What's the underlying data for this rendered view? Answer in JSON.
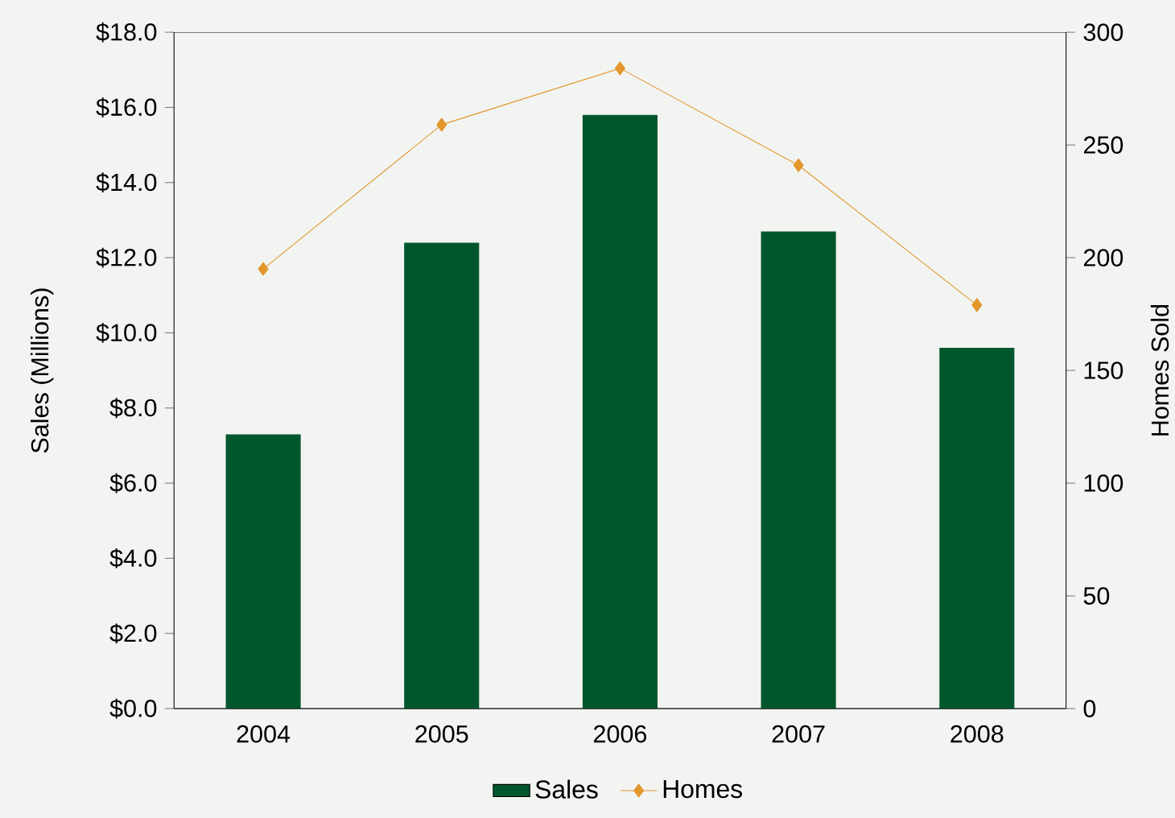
{
  "chart_data": {
    "type": "bar",
    "categories": [
      "2004",
      "2005",
      "2006",
      "2007",
      "2008"
    ],
    "series": [
      {
        "name": "Sales",
        "color": "#00572d",
        "values": [
          7.3,
          12.4,
          15.8,
          12.7,
          9.6
        ]
      },
      {
        "name": "Homes",
        "type": "line",
        "axis": "y2",
        "color": "#e3962a",
        "marker": "diamond",
        "values": [
          195,
          259,
          284,
          241,
          179
        ]
      }
    ],
    "ylabel": "Sales (Millions)",
    "y2label": "Homes Sold",
    "ylim": [
      0,
      18
    ],
    "yticks": [
      {
        "value": 0,
        "label": "$0.0"
      },
      {
        "value": 2,
        "label": "$2.0"
      },
      {
        "value": 4,
        "label": "$4.0"
      },
      {
        "value": 6,
        "label": "$6.0"
      },
      {
        "value": 8,
        "label": "$8.0"
      },
      {
        "value": 10,
        "label": "$10.0"
      },
      {
        "value": 12,
        "label": "$12.0"
      },
      {
        "value": 14,
        "label": "$14.0"
      },
      {
        "value": 16,
        "label": "$16.0"
      },
      {
        "value": 18,
        "label": "$18.0"
      }
    ],
    "y2lim": [
      0,
      300
    ],
    "y2ticks": [
      0,
      50,
      100,
      150,
      200,
      250,
      300
    ],
    "legend": "bottom",
    "grid": false
  }
}
